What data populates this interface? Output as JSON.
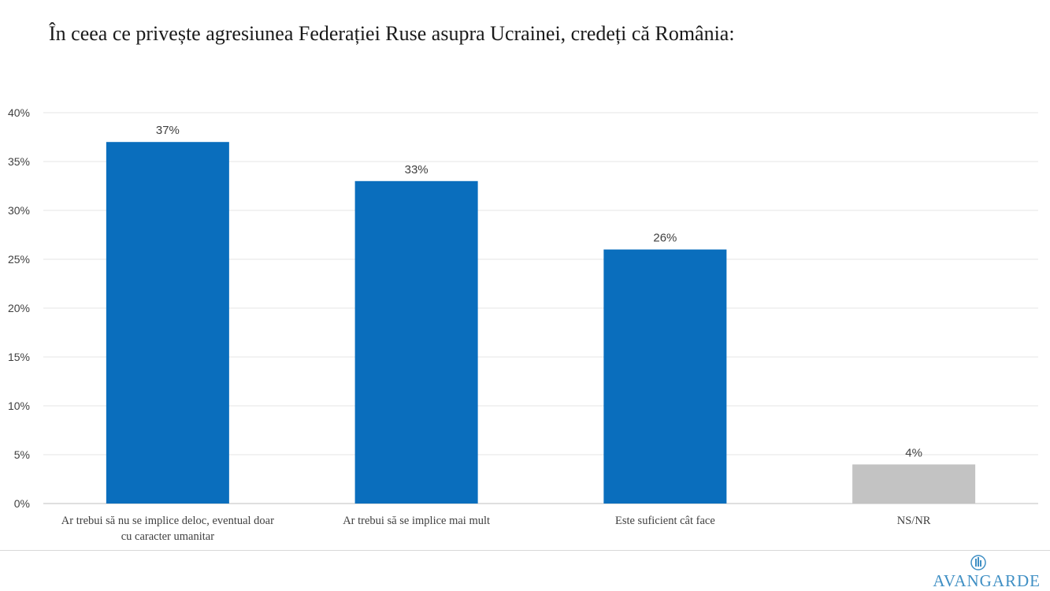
{
  "title": "În ceea ce privește agresiunea Federației Ruse asupra Ucrainei, credeți că România:",
  "brand": {
    "name": "AVANGARDE",
    "icon": "avangarde-logo-icon"
  },
  "chart_data": {
    "type": "bar",
    "title": "În ceea ce privește agresiunea Federației Ruse asupra Ucrainei, credeți că România:",
    "xlabel": "",
    "ylabel": "",
    "ylim": [
      0,
      40
    ],
    "y_ticks": [
      "0%",
      "5%",
      "10%",
      "15%",
      "20%",
      "25%",
      "30%",
      "35%",
      "40%"
    ],
    "grid": true,
    "legend": "none",
    "categories": [
      [
        "Ar trebui să nu se implice deloc, eventual doar",
        "cu caracter umanitar"
      ],
      [
        "Ar trebui să se implice mai mult"
      ],
      [
        "Este suficient cât face"
      ],
      [
        "NS/NR"
      ]
    ],
    "values": [
      37,
      33,
      26,
      4
    ],
    "data_labels": [
      "37%",
      "33%",
      "26%",
      "4%"
    ],
    "colors": [
      "#0a6ebd",
      "#0a6ebd",
      "#0a6ebd",
      "#c3c3c3"
    ],
    "grid_color": "#e6e6e6",
    "axis_color": "#bfbfbf"
  }
}
